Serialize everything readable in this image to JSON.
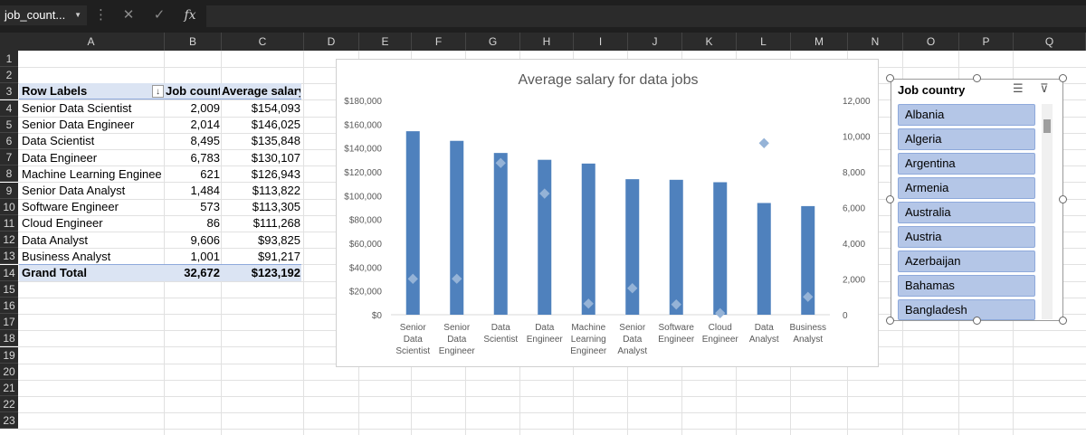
{
  "formula_bar": {
    "name_box": "job_count...",
    "fx": "fx",
    "menu_icon": "⋮",
    "cancel_icon": "✕",
    "enter_icon": "✓"
  },
  "columns": [
    "A",
    "B",
    "C",
    "D",
    "E",
    "F",
    "G",
    "H",
    "I",
    "J",
    "K",
    "L",
    "M",
    "N",
    "O",
    "P",
    "Q"
  ],
  "rows": [
    "1",
    "2",
    "3",
    "4",
    "5",
    "6",
    "7",
    "8",
    "9",
    "10",
    "11",
    "12",
    "13",
    "14",
    "15",
    "16",
    "17",
    "18",
    "19",
    "20",
    "21",
    "22",
    "23"
  ],
  "pivot": {
    "headers": [
      "Row Labels",
      "Job count",
      "Average salary"
    ],
    "filter_icon": "↓",
    "rows": [
      {
        "label": "Senior Data Scientist",
        "count": "2,009",
        "salary": "$154,093"
      },
      {
        "label": "Senior Data Engineer",
        "count": "2,014",
        "salary": "$146,025"
      },
      {
        "label": "Data Scientist",
        "count": "8,495",
        "salary": "$135,848"
      },
      {
        "label": "Data Engineer",
        "count": "6,783",
        "salary": "$130,107"
      },
      {
        "label": "Machine Learning Engineer",
        "count": "621",
        "salary": "$126,943"
      },
      {
        "label": "Senior Data Analyst",
        "count": "1,484",
        "salary": "$113,822"
      },
      {
        "label": "Software Engineer",
        "count": "573",
        "salary": "$113,305"
      },
      {
        "label": "Cloud Engineer",
        "count": "86",
        "salary": "$111,268"
      },
      {
        "label": "Data Analyst",
        "count": "9,606",
        "salary": "$93,825"
      },
      {
        "label": "Business Analyst",
        "count": "1,001",
        "salary": "$91,217"
      }
    ],
    "total": {
      "label": "Grand Total",
      "count": "32,672",
      "salary": "$123,192"
    }
  },
  "chart_data": {
    "type": "bar",
    "title": "Average salary for data jobs",
    "categories": [
      [
        "Senior",
        "Data",
        "Scientist"
      ],
      [
        "Senior",
        "Data",
        "Engineer"
      ],
      [
        "Data",
        "Scientist"
      ],
      [
        "Data",
        "Engineer"
      ],
      [
        "Machine",
        "Learning",
        "Engineer"
      ],
      [
        "Senior",
        "Data",
        "Analyst"
      ],
      [
        "Software",
        "Engineer"
      ],
      [
        "Cloud",
        "Engineer"
      ],
      [
        "Data",
        "Analyst"
      ],
      [
        "Business",
        "Analyst"
      ]
    ],
    "series": [
      {
        "values": [
          154093,
          146025,
          135848,
          130107,
          126943,
          113822,
          113305,
          111268,
          93825,
          91217
        ],
        "color": "#4f81bd",
        "axis": "left"
      },
      {
        "values": [
          2009,
          2014,
          8495,
          6783,
          621,
          1484,
          573,
          86,
          9606,
          1001
        ],
        "color": "#95b3d7",
        "axis": "right"
      }
    ],
    "ylim_left": [
      0,
      180000
    ],
    "ylim_right": [
      0,
      12000
    ],
    "left_ticks": [
      "$0",
      "$20,000",
      "$40,000",
      "$60,000",
      "$80,000",
      "$100,000",
      "$120,000",
      "$140,000",
      "$160,000",
      "$180,000"
    ],
    "right_ticks": [
      "0",
      "2,000",
      "4,000",
      "6,000",
      "8,000",
      "10,000",
      "12,000"
    ],
    "grid": false,
    "legend": "none"
  },
  "slicer": {
    "title": "Job country",
    "multiselect_icon": "☰",
    "clear_filter_icon": "⊽",
    "items": [
      "Albania",
      "Algeria",
      "Argentina",
      "Armenia",
      "Australia",
      "Austria",
      "Azerbaijan",
      "Bahamas",
      "Bangladesh"
    ]
  }
}
